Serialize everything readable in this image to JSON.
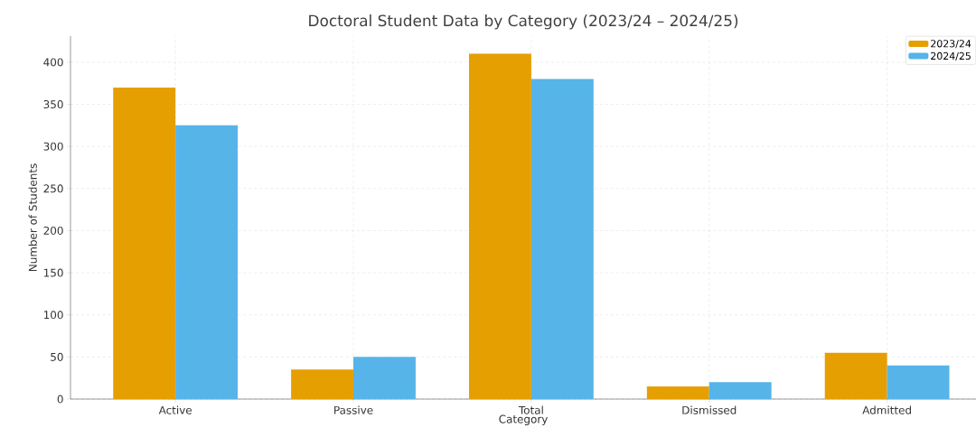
{
  "chart_data": {
    "type": "bar",
    "title": "Doctoral Student Data by Category (2023/24 – 2024/25)",
    "xlabel": "Category",
    "ylabel": "Number of Students",
    "categories": [
      "Active",
      "Passive",
      "Total",
      "Dismissed",
      "Admitted"
    ],
    "series": [
      {
        "name": "2023/24",
        "color": "#e69f00",
        "values": [
          370,
          35,
          410,
          15,
          55
        ]
      },
      {
        "name": "2024/25",
        "color": "#56b4e9",
        "values": [
          325,
          50,
          380,
          20,
          40
        ]
      }
    ],
    "ylim": [
      0,
      431
    ],
    "yticks": [
      0,
      50,
      100,
      150,
      200,
      250,
      300,
      350,
      400
    ],
    "grid": true,
    "legend": "top right"
  }
}
